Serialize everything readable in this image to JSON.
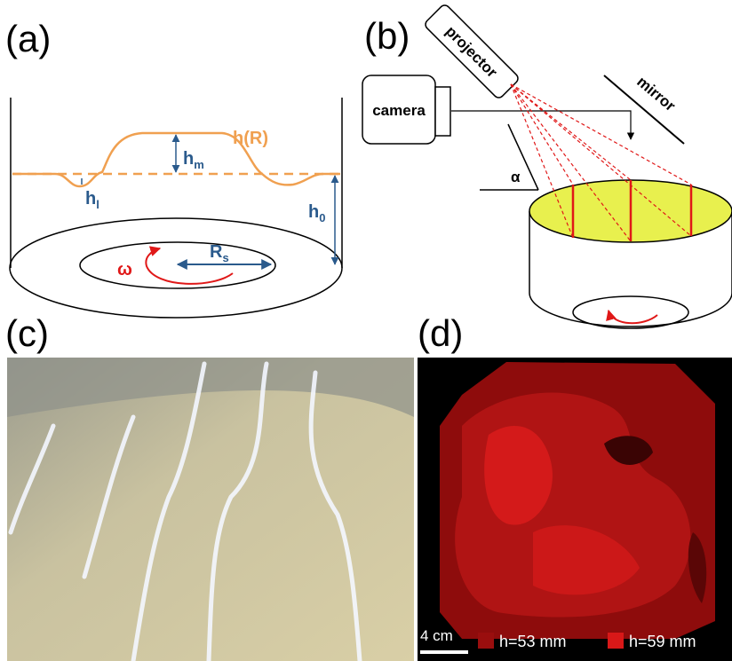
{
  "panels": {
    "a": {
      "label": "(a)",
      "profile_label": "h(R)",
      "h_m": {
        "base": "h",
        "sub": "m"
      },
      "h_l": {
        "base": "h",
        "sub": "l"
      },
      "h_0": {
        "base": "h",
        "sub": "0"
      },
      "R_s": {
        "base": "R",
        "sub": "s"
      },
      "omega": "ω"
    },
    "b": {
      "label": "(b)",
      "projector": "projector",
      "camera": "camera",
      "mirror": "mirror",
      "alpha": "α"
    },
    "c": {
      "label": "(c)"
    },
    "d": {
      "label": "(d)",
      "scale_bar": "4 cm",
      "legend": [
        {
          "label": "h=53 mm",
          "color": "#9a0e0e"
        },
        {
          "label": "h=59 mm",
          "color": "#d81818"
        }
      ]
    }
  }
}
